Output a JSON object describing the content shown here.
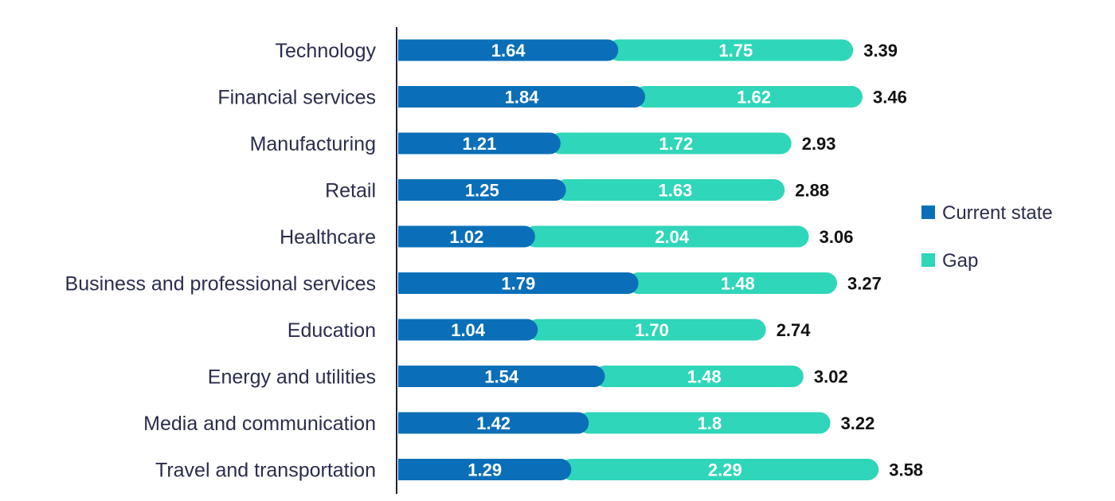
{
  "chart_data": {
    "type": "bar",
    "orientation": "horizontal",
    "stacked": true,
    "categories": [
      "Technology",
      "Financial services",
      "Manufacturing",
      "Retail",
      "Healthcare",
      "Business and professional services",
      "Education",
      "Energy and utilities",
      "Media and communication",
      "Travel and transportation"
    ],
    "series": [
      {
        "name": "Current state",
        "color": "#0a6fb8",
        "values": [
          1.64,
          1.84,
          1.21,
          1.25,
          1.02,
          1.79,
          1.04,
          1.54,
          1.42,
          1.29
        ],
        "labels": [
          "1.64",
          "1.84",
          "1.21",
          "1.25",
          "1.02",
          "1.79",
          "1.04",
          "1.54",
          "1.42",
          "1.29"
        ]
      },
      {
        "name": "Gap",
        "color": "#2fd6b9",
        "values": [
          1.75,
          1.62,
          1.72,
          1.63,
          2.04,
          1.48,
          1.7,
          1.48,
          1.8,
          2.29
        ],
        "labels": [
          "1.75",
          "1.62",
          "1.72",
          "1.63",
          "2.04",
          "1.48",
          "1.70",
          "1.48",
          "1.8",
          "2.29"
        ]
      }
    ],
    "totals": [
      3.39,
      3.46,
      2.93,
      2.88,
      3.06,
      3.27,
      2.74,
      3.02,
      3.22,
      3.58
    ],
    "total_labels": [
      "3.39",
      "3.46",
      "2.93",
      "2.88",
      "3.06",
      "3.27",
      "2.74",
      "3.02",
      "3.22",
      "3.58"
    ],
    "title": "",
    "xlabel": "",
    "ylabel": "",
    "xlim": [
      0,
      4
    ],
    "grid": false,
    "legend_position": "right"
  }
}
